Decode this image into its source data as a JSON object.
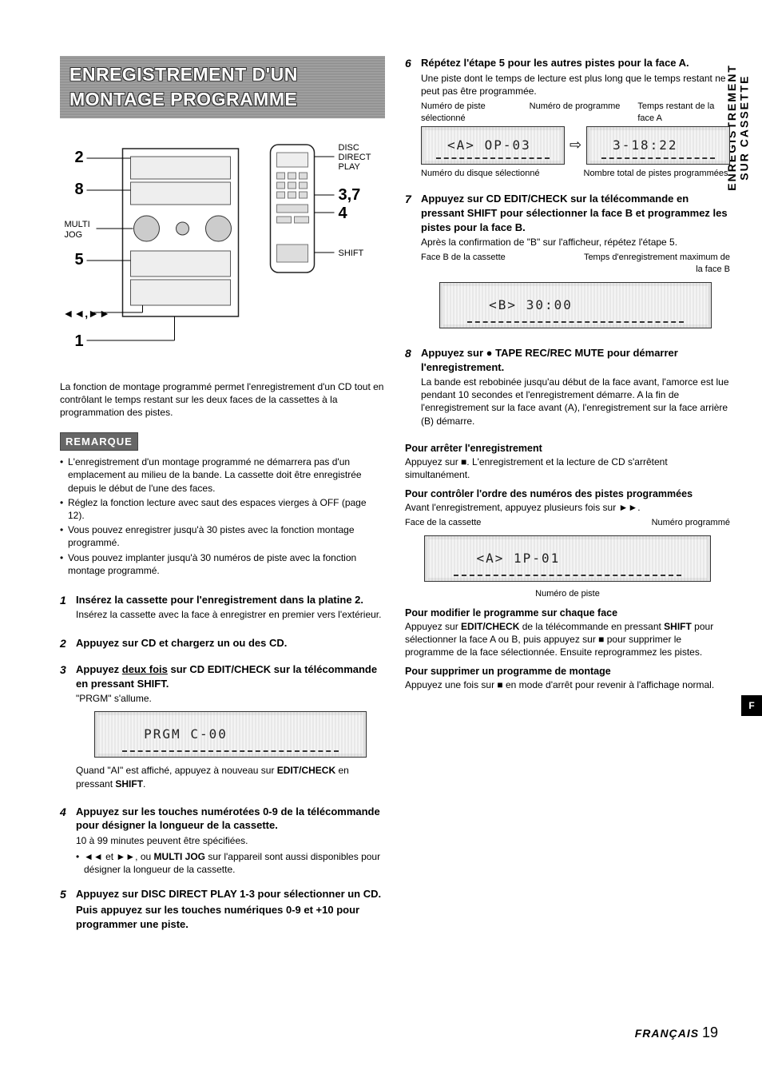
{
  "side_tab_l1": "ENREGISTREMENT",
  "side_tab_l2": "SUR CASSETTE",
  "f_tab": "F",
  "title": "ENREGISTREMENT D'UN MONTAGE PROGRAMME",
  "diagram": {
    "labels": {
      "n2": "2",
      "n8": "8",
      "n5": "5",
      "n1": "1",
      "multi": "MULTI",
      "jog": "JOG",
      "rewff": "◄◄,►►",
      "ddp1": "DISC",
      "ddp2": "DIRECT",
      "ddp3": "PLAY",
      "n37": "3,7",
      "n4": "4",
      "shift": "SHIFT"
    }
  },
  "intro": "La fonction de montage programmé permet l'enregistrement d'un CD tout en contrôlant le temps restant sur les deux faces de la cassettes à la programmation des pistes.",
  "remarque_label": "REMARQUE",
  "notes": [
    "L'enregistrement d'un montage programmé ne démarrera pas d'un emplacement au milieu de la bande. La cassette doit être enregistrée depuis le début de l'une des faces.",
    "Réglez la fonction lecture avec saut des espaces vierges à OFF (page 12).",
    "Vous pouvez enregistrer jusqu'à 30 pistes avec la fonction montage programmé.",
    "Vous pouvez implanter jusqu'à 30 numéros de piste avec la fonction montage programmé."
  ],
  "steps_left": [
    {
      "num": "1",
      "head": "Insérez la cassette pour l'enregistrement dans la platine 2.",
      "text": "Insérez la cassette avec la face à enregistrer en premier vers l'extérieur."
    },
    {
      "num": "2",
      "head": "Appuyez sur CD et chargerz un ou des CD."
    },
    {
      "num": "3",
      "head_html": "Appuyez <u class='dbl'>deux fois</u> sur CD EDIT/CHECK sur la télécommande en pressant SHIFT.",
      "text": "\"PRGM\" s'allume.",
      "lcd": "PRGM  C-00",
      "after_html": "Quand \"AI\" est affiché, appuyez à nouveau sur <b>EDIT/CHECK</b> en pressant <b>SHIFT</b>."
    },
    {
      "num": "4",
      "head": "Appuyez sur les touches numérotées 0-9 de la télécommande pour désigner la longueur de la cassette.",
      "text": "10 à 99 minutes peuvent être spécifiées.",
      "sub_html": "◄◄ et ►►, ou <b>MULTI JOG</b> sur l'appareil sont aussi disponibles pour désigner la longueur de la cassette."
    },
    {
      "num": "5",
      "head": "Appuyez sur DISC DIRECT PLAY 1-3 pour sélectionner un CD.",
      "head2": "Puis appuyez sur les touches numériques 0-9 et +10 pour programmer une piste."
    }
  ],
  "steps_right": [
    {
      "num": "6",
      "head": "Répétez l'étape 5 pour les autres pistes pour la face A.",
      "text": "Une piste dont le temps de lecture est plus long que le temps restant ne peut pas être programmée.",
      "call_top_l": "Numéro de piste sélectionné",
      "call_top_m": "Numéro de programme",
      "call_top_r": "Temps restant de la face A",
      "lcd_l": "<A> OP-03",
      "lcd_r": "3-18:22",
      "call_bot_l": "Numéro du disque sélectionné",
      "call_bot_r": "Nombre total de pistes programmées"
    },
    {
      "num": "7",
      "head": "Appuyez sur CD EDIT/CHECK sur la télécommande en pressant SHIFT pour sélectionner la face B et programmez les pistes pour la face B.",
      "text": "Après la confirmation de \"B\" sur l'afficheur, répétez l'étape 5.",
      "call_top_l": "Face B de la cassette",
      "call_top_r": "Temps d'enregistrement maximum de la face B",
      "lcd": "<B>  30:00"
    },
    {
      "num": "8",
      "head": "Appuyez sur ● TAPE REC/REC MUTE pour démarrer l'enregistrement.",
      "text": "La bande est rebobinée jusqu'au début de la face avant, l'amorce est lue pendant 10 secondes et l'enregistrement démarre. A la fin de l'enregistrement sur la face avant (A), l'enregistrement sur la face arrière (B) démarre."
    }
  ],
  "extras": {
    "stop_head": "Pour arrêter l'enregistrement",
    "stop_text": "Appuyez sur ■. L'enregistrement et la lecture de CD s'arrêtent simultanément.",
    "order_head": "Pour contrôler l'ordre des numéros des pistes programmées",
    "order_text": "Avant l'enregistrement, appuyez plusieurs fois sur ►►.",
    "order_call_l": "Face de la cassette",
    "order_call_r": "Numéro programmé",
    "order_lcd": "<A>  1P-01",
    "order_call_b": "Numéro de piste",
    "modify_head": "Pour modifier le programme sur chaque face",
    "modify_text_html": "Appuyez sur <b>EDIT/CHECK</b> de la télécommande en pressant <b>SHIFT</b> pour sélectionner la face A ou B, puis appuyez sur ■ pour supprimer le programme de la face sélectionnée. Ensuite reprogrammez les pistes.",
    "delete_head": "Pour supprimer un programme de montage",
    "delete_text": "Appuyez une fois sur ■ en mode d'arrêt pour revenir à l'affichage normal."
  },
  "footer_lang": "FRANÇAIS",
  "footer_page": "19"
}
